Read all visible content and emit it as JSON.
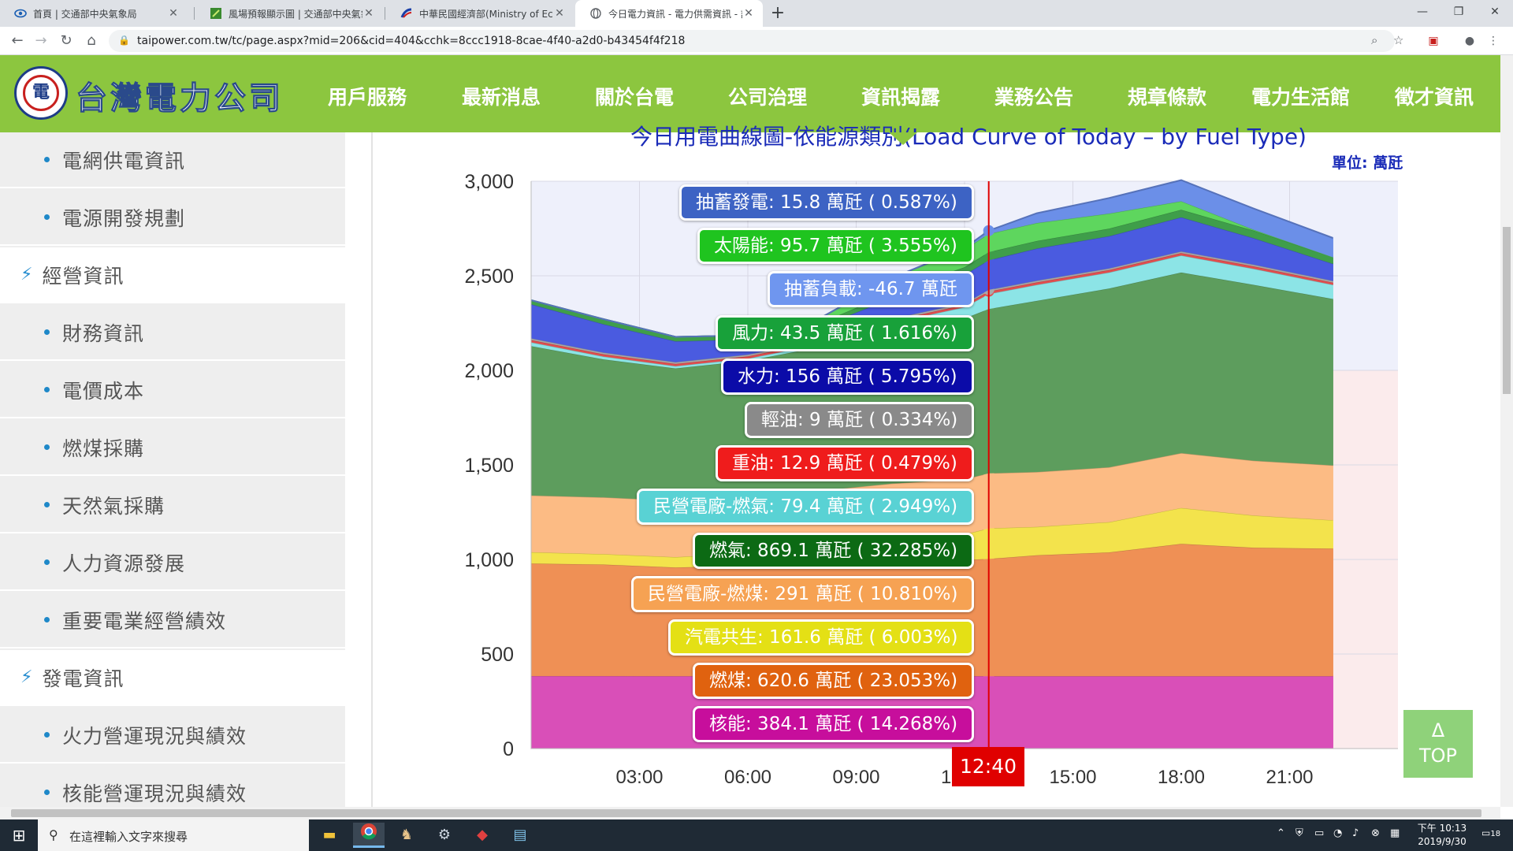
{
  "browser": {
    "tabs": [
      {
        "title": "首頁 | 交通部中央氣象局",
        "icon": "eye-icon"
      },
      {
        "title": "風場預報顯示圖 | 交通部中央氣象",
        "icon": "leaf-icon"
      },
      {
        "title": "中華民國經濟部(Ministry of Econ",
        "icon": "moea-icon"
      },
      {
        "title": "今日電力資訊 - 電力供需資訊 - 記",
        "icon": "globe-icon"
      }
    ],
    "url": "taipower.com.tw/tc/page.aspx?mid=206&cid=404&cchk=8ccc1918-8cae-4f40-a2d0-b43454f4f218"
  },
  "site": {
    "logo_text": "台灣電力公司",
    "nav": [
      "用戶服務",
      "最新消息",
      "關於台電",
      "公司治理",
      "資訊揭露",
      "業務公告",
      "規章條款",
      "電力生活館",
      "徵才資訊"
    ]
  },
  "sidebar": {
    "items": [
      {
        "label": "電網供電資訊",
        "type": "sub"
      },
      {
        "label": "電源開發規劃",
        "type": "sub"
      },
      {
        "label": "經營資訊",
        "type": "head"
      },
      {
        "label": "財務資訊",
        "type": "sub"
      },
      {
        "label": "電價成本",
        "type": "sub"
      },
      {
        "label": "燃煤採購",
        "type": "sub"
      },
      {
        "label": "天然氣採購",
        "type": "sub"
      },
      {
        "label": "人力資源發展",
        "type": "sub"
      },
      {
        "label": "重要電業經營績效",
        "type": "sub"
      },
      {
        "label": "發電資訊",
        "type": "head"
      },
      {
        "label": "火力營運現況與績效",
        "type": "sub"
      },
      {
        "label": "核能營運現況與績效",
        "type": "sub"
      }
    ]
  },
  "chart": {
    "title": "今日用電曲線圖-依能源類別(Load Curve of Today – by Fuel Type)",
    "unit": "單位: 萬瓩",
    "current_time": "12:40"
  },
  "chart_data": {
    "type": "area",
    "stacked": true,
    "x_label_ticks": [
      "03:00",
      "06:00",
      "09:00",
      "12:00",
      "15:00",
      "18:00",
      "21:00"
    ],
    "xlim": [
      0,
      24
    ],
    "ylim": [
      0,
      3000
    ],
    "y_ticks": [
      0,
      500,
      1000,
      1500,
      2000,
      2500,
      3000
    ],
    "y_tick_labels": [
      "0",
      "500",
      "1,000",
      "1,500",
      "2,000",
      "2,500",
      "3,000"
    ],
    "cursor_time": "12:40",
    "x_hours": [
      0,
      2,
      4,
      6,
      8,
      10,
      12,
      12.67,
      14,
      16,
      18,
      20,
      22.2
    ],
    "series": [
      {
        "name": "核能",
        "color": "#d94fb8",
        "values": [
          385,
          385,
          384,
          384,
          384,
          384,
          384,
          384,
          384,
          384,
          384,
          384,
          384
        ]
      },
      {
        "name": "燃煤",
        "color": "#ef9055",
        "values": [
          595,
          590,
          575,
          585,
          590,
          605,
          615,
          620.6,
          640,
          655,
          700,
          680,
          675
        ]
      },
      {
        "name": "汽電共生",
        "color": "#f3e34c",
        "values": [
          60,
          55,
          55,
          65,
          95,
          120,
          135,
          161.6,
          150,
          160,
          190,
          170,
          150
        ]
      },
      {
        "name": "民營電廠-燃煤",
        "color": "#fcbb84",
        "values": [
          300,
          300,
          298,
          298,
          296,
          294,
          292,
          291,
          290,
          290,
          290,
          290,
          290
        ]
      },
      {
        "name": "燃氣",
        "color": "#5d9d5d",
        "values": [
          790,
          730,
          700,
          720,
          760,
          820,
          850,
          869.1,
          905,
          945,
          955,
          930,
          880
        ]
      },
      {
        "name": "民營電廠-燃氣",
        "color": "#8ce4e6",
        "values": [
          20,
          15,
          12,
          12,
          15,
          30,
          60,
          79.4,
          85,
          85,
          90,
          85,
          75
        ]
      },
      {
        "name": "重油",
        "color": "#e24d4d",
        "values": [
          12,
          12,
          12,
          12,
          12,
          12,
          12,
          12.9,
          13,
          13,
          13,
          13,
          12
        ]
      },
      {
        "name": "輕油",
        "color": "#a9a9a9",
        "values": [
          9,
          9,
          9,
          9,
          9,
          9,
          9,
          9,
          9,
          9,
          9,
          9,
          9
        ]
      },
      {
        "name": "水力",
        "color": "#4a5be0",
        "values": [
          180,
          150,
          110,
          80,
          70,
          110,
          150,
          156,
          170,
          170,
          180,
          140,
          90
        ]
      },
      {
        "name": "風力",
        "color": "#3f9e4a",
        "values": [
          20,
          25,
          22,
          20,
          20,
          30,
          40,
          43.5,
          40,
          40,
          40,
          40,
          35
        ]
      },
      {
        "name": "太陽能",
        "color": "#5ed65e",
        "values": [
          0,
          0,
          0,
          0,
          25,
          75,
          95,
          95.7,
          95,
          80,
          45,
          5,
          0
        ]
      },
      {
        "name": "抽蓄發電",
        "color": "#6b8fe8",
        "values": [
          0,
          0,
          0,
          0,
          0,
          0,
          5,
          15.8,
          50,
          80,
          110,
          110,
          100
        ]
      }
    ],
    "tooltip": [
      {
        "text": "抽蓄發電: 15.8 萬瓩 ( 0.587%)",
        "color": "#3d63c4"
      },
      {
        "text": "太陽能: 95.7 萬瓩 ( 3.555%)",
        "color": "#1fc41f"
      },
      {
        "text": "抽蓄負載: -46.7 萬瓩",
        "color": "#6f96ef"
      },
      {
        "text": "風力: 43.5 萬瓩 ( 1.616%)",
        "color": "#18a13a"
      },
      {
        "text": "水力: 156 萬瓩 ( 5.795%)",
        "color": "#0b0ba8"
      },
      {
        "text": "輕油: 9 萬瓩 ( 0.334%)",
        "color": "#8a8a8a"
      },
      {
        "text": "重油: 12.9 萬瓩 ( 0.479%)",
        "color": "#ef1c1c"
      },
      {
        "text": "民營電廠-燃氣: 79.4 萬瓩 ( 2.949%)",
        "color": "#59d2d4"
      },
      {
        "text": "燃氣: 869.1 萬瓩 ( 32.285%)",
        "color": "#0c6a14"
      },
      {
        "text": "民營電廠-燃煤: 291 萬瓩 ( 10.810%)",
        "color": "#f6a253"
      },
      {
        "text": "汽電共生: 161.6 萬瓩 ( 6.003%)",
        "color": "#e4e015"
      },
      {
        "text": "燃煤: 620.6 萬瓩 ( 23.053%)",
        "color": "#e0620f"
      },
      {
        "text": "核能: 384.1 萬瓩 ( 14.268%)",
        "color": "#c70e9c"
      }
    ]
  },
  "top_button": {
    "arrow": "Δ",
    "label": "TOP"
  },
  "taskbar": {
    "search_placeholder": "在這裡輸入文字來搜尋",
    "time": "下午 10:13",
    "date": "2019/9/30",
    "notifications": "18"
  }
}
